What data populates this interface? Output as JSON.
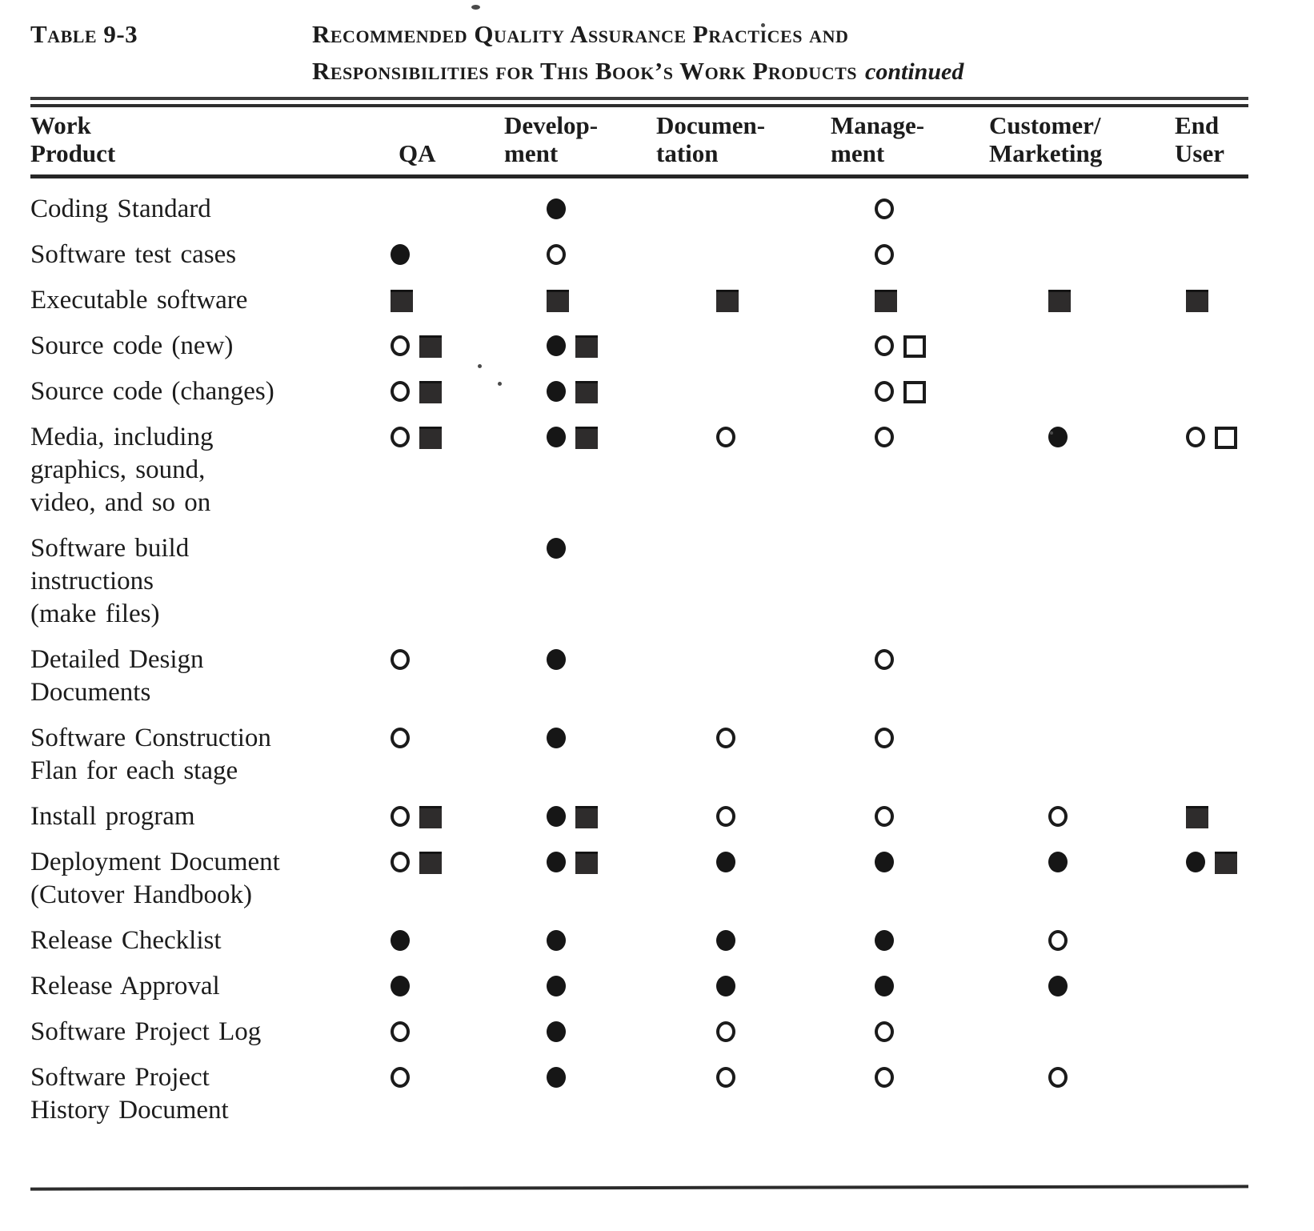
{
  "page_header": {
    "table_label": "Table 9-3",
    "title_line1": "Recommended Quality Assurance Practices and",
    "title_line2": "Responsibilities for This Book’s Work Products",
    "title_emphasis": "continued"
  },
  "columns": [
    {
      "key": "product",
      "label": "Work\nProduct"
    },
    {
      "key": "qa",
      "label": "QA"
    },
    {
      "key": "development",
      "label": "Develop-\nment"
    },
    {
      "key": "documentation",
      "label": "Documen-\ntation"
    },
    {
      "key": "management",
      "label": "Manage-\nment"
    },
    {
      "key": "customer_marketing",
      "label": "Customer/\nMarketing"
    },
    {
      "key": "end_user",
      "label": "End\nUser"
    }
  ],
  "symbol_names": {
    "filled-circle": "black dot",
    "open-circle": "outlined circle",
    "filled-square": "black square",
    "open-square": "outlined square"
  },
  "colors": {
    "ink": "#1c1c1c",
    "paper": "#ffffff"
  },
  "rows": [
    {
      "product": "Coding Standard",
      "cells": {
        "qa": [],
        "development": [
          "filled-circle"
        ],
        "documentation": [],
        "management": [
          "open-circle"
        ],
        "customer_marketing": [],
        "end_user": []
      }
    },
    {
      "product": "Software test cases",
      "cells": {
        "qa": [
          "filled-circle"
        ],
        "development": [
          "open-circle"
        ],
        "documentation": [],
        "management": [
          "open-circle"
        ],
        "customer_marketing": [],
        "end_user": []
      }
    },
    {
      "product": "Executable software",
      "cells": {
        "qa": [
          "filled-square"
        ],
        "development": [
          "filled-square"
        ],
        "documentation": [
          "filled-square"
        ],
        "management": [
          "filled-square"
        ],
        "customer_marketing": [
          "filled-square"
        ],
        "end_user": [
          "filled-square"
        ]
      }
    },
    {
      "product": "Source code (new)",
      "cells": {
        "qa": [
          "open-circle",
          "filled-square"
        ],
        "development": [
          "filled-circle",
          "filled-square"
        ],
        "documentation": [],
        "management": [
          "open-circle",
          "open-square"
        ],
        "customer_marketing": [],
        "end_user": []
      }
    },
    {
      "product": "Source code (changes)",
      "cells": {
        "qa": [
          "open-circle",
          "filled-square"
        ],
        "development": [
          "filled-circle",
          "filled-square"
        ],
        "documentation": [],
        "management": [
          "open-circle",
          "open-square"
        ],
        "customer_marketing": [],
        "end_user": []
      }
    },
    {
      "product": "Media, including\ngraphics, sound,\nvideo, and so on",
      "cells": {
        "qa": [
          "open-circle",
          "filled-square"
        ],
        "development": [
          "filled-circle",
          "filled-square"
        ],
        "documentation": [
          "open-circle"
        ],
        "management": [
          "open-circle"
        ],
        "customer_marketing": [
          "filled-circle"
        ],
        "end_user": [
          "open-circle",
          "open-square"
        ]
      }
    },
    {
      "product": "Software build\ninstructions\n(make files)",
      "cells": {
        "qa": [],
        "development": [
          "filled-circle"
        ],
        "documentation": [],
        "management": [],
        "customer_marketing": [],
        "end_user": []
      }
    },
    {
      "product": "Detailed Design\nDocuments",
      "cells": {
        "qa": [
          "open-circle"
        ],
        "development": [
          "filled-circle"
        ],
        "documentation": [],
        "management": [
          "open-circle"
        ],
        "customer_marketing": [],
        "end_user": []
      }
    },
    {
      "product": "Software Construction\nFlan for each stage",
      "cells": {
        "qa": [
          "open-circle"
        ],
        "development": [
          "filled-circle"
        ],
        "documentation": [
          "open-circle"
        ],
        "management": [
          "open-circle"
        ],
        "customer_marketing": [],
        "end_user": []
      }
    },
    {
      "product": "Install program",
      "cells": {
        "qa": [
          "open-circle",
          "filled-square"
        ],
        "development": [
          "filled-circle",
          "filled-square"
        ],
        "documentation": [
          "open-circle"
        ],
        "management": [
          "open-circle"
        ],
        "customer_marketing": [
          "open-circle"
        ],
        "end_user": [
          "filled-square"
        ]
      }
    },
    {
      "product": "Deployment Document\n(Cutover Handbook)",
      "cells": {
        "qa": [
          "open-circle",
          "filled-square"
        ],
        "development": [
          "filled-circle",
          "filled-square"
        ],
        "documentation": [
          "filled-circle"
        ],
        "management": [
          "filled-circle"
        ],
        "customer_marketing": [
          "filled-circle"
        ],
        "end_user": [
          "filled-circle",
          "filled-square"
        ]
      }
    },
    {
      "product": "Release Checklist",
      "cells": {
        "qa": [
          "filled-circle"
        ],
        "development": [
          "filled-circle"
        ],
        "documentation": [
          "filled-circle"
        ],
        "management": [
          "filled-circle"
        ],
        "customer_marketing": [
          "open-circle"
        ],
        "end_user": []
      }
    },
    {
      "product": "Release Approval",
      "cells": {
        "qa": [
          "filled-circle"
        ],
        "development": [
          "filled-circle"
        ],
        "documentation": [
          "filled-circle"
        ],
        "management": [
          "filled-circle"
        ],
        "customer_marketing": [
          "filled-circle"
        ],
        "end_user": []
      }
    },
    {
      "product": "Software Project Log",
      "cells": {
        "qa": [
          "open-circle"
        ],
        "development": [
          "filled-circle"
        ],
        "documentation": [
          "open-circle"
        ],
        "management": [
          "open-circle"
        ],
        "customer_marketing": [],
        "end_user": []
      }
    },
    {
      "product": "Software Project\nHistory Document",
      "cells": {
        "qa": [
          "open-circle"
        ],
        "development": [
          "filled-circle"
        ],
        "documentation": [
          "open-circle"
        ],
        "management": [
          "open-circle"
        ],
        "customer_marketing": [
          "open-circle"
        ],
        "end_user": []
      }
    }
  ]
}
